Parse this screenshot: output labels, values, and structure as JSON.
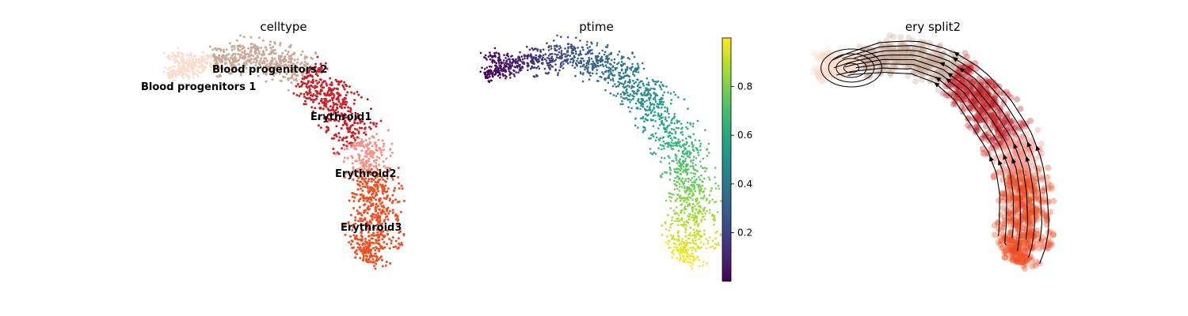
{
  "chart_data": [
    {
      "type": "scatter",
      "title": "celltype",
      "legend": "on data",
      "categories": [
        "Blood progenitors 1",
        "Blood progenitors 2",
        "Erythroid1",
        "Erythroid2",
        "Erythroid3"
      ],
      "colors": {
        "Blood progenitors 1": "#f9decf",
        "Blood progenitors 2": "#c9a997",
        "Erythroid1": "#c72228",
        "Erythroid2": "#f79083",
        "Erythroid3": "#ef4e22"
      },
      "labels": [
        {
          "text": "Blood progenitors 1",
          "category": "Blood progenitors 1"
        },
        {
          "text": "Blood progenitors 2",
          "category": "Blood progenitors 2"
        },
        {
          "text": "Erythroid1",
          "category": "Erythroid1"
        },
        {
          "text": "Erythroid2",
          "category": "Erythroid2"
        },
        {
          "text": "Erythroid3",
          "category": "Erythroid3"
        }
      ]
    },
    {
      "type": "scatter",
      "title": "ptime",
      "colormap": "viridis",
      "colorbar": {
        "range": [
          0.0,
          1.0
        ],
        "ticks": [
          0.2,
          0.4,
          0.6,
          0.8
        ],
        "tick_labels": [
          "0.2",
          "0.4",
          "0.6",
          "0.8"
        ]
      }
    },
    {
      "type": "scatter",
      "title": "ery split2",
      "overlay": "velocity streamlines",
      "stream_color": "#000000",
      "point_colors_from": "celltype"
    }
  ]
}
